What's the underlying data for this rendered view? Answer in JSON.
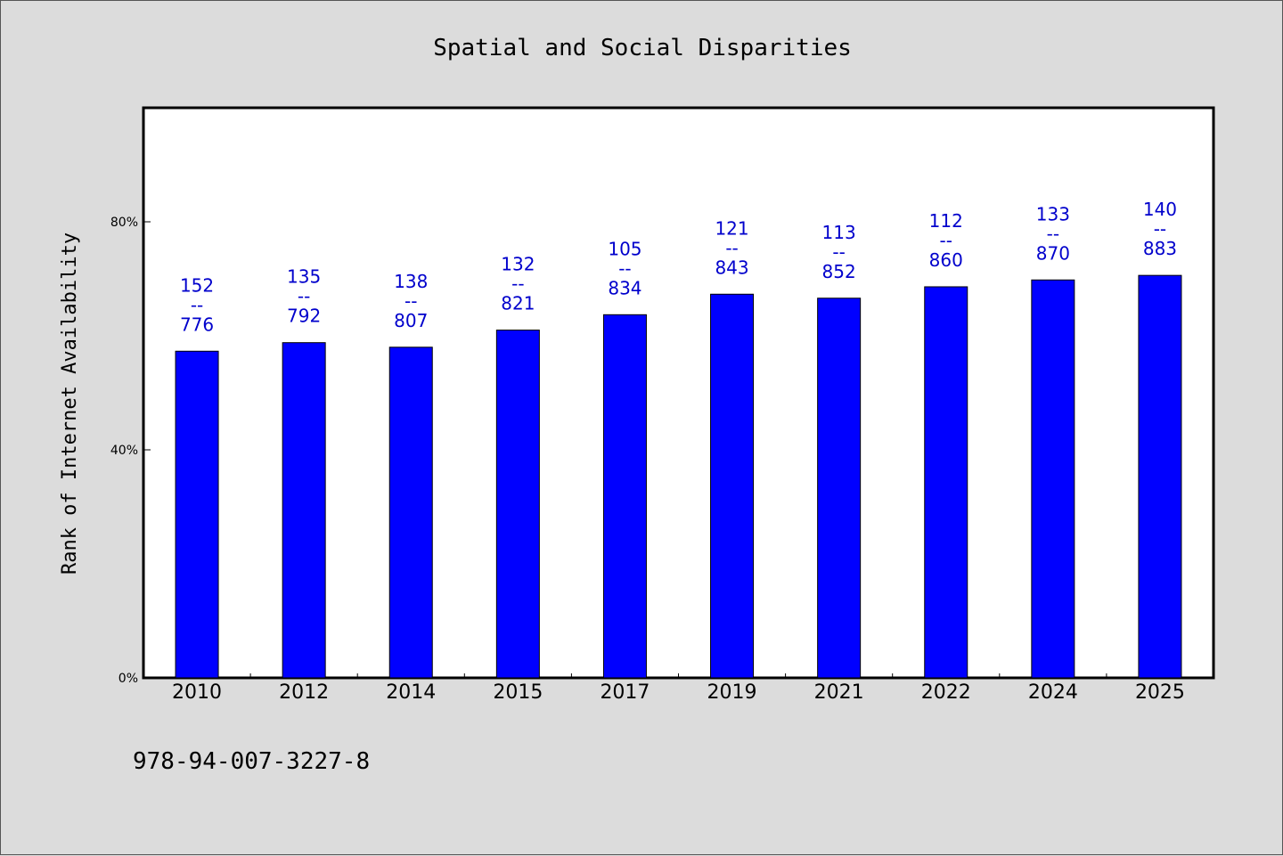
{
  "chart_data": {
    "type": "bar",
    "title": "Spatial and Social Disparities",
    "xlabel": "",
    "ylabel": "Rank of Internet Availability",
    "categories": [
      "2010",
      "2012",
      "2014",
      "2015",
      "2017",
      "2019",
      "2021",
      "2022",
      "2024",
      "2025"
    ],
    "values": [
      57.3,
      58.8,
      58.0,
      61.0,
      63.7,
      67.3,
      66.6,
      68.6,
      69.8,
      70.6
    ],
    "unit": "%",
    "data_labels": [
      [
        "152",
        "--",
        "776"
      ],
      [
        "135",
        "--",
        "792"
      ],
      [
        "138",
        "--",
        "807"
      ],
      [
        "132",
        "--",
        "821"
      ],
      [
        "105",
        "--",
        "834"
      ],
      [
        "121",
        "--",
        "843"
      ],
      [
        "113",
        "--",
        "852"
      ],
      [
        "112",
        "--",
        "860"
      ],
      [
        "133",
        "--",
        "870"
      ],
      [
        "140",
        "--",
        "883"
      ]
    ],
    "yticks": [
      "0%",
      "40%",
      "80%"
    ],
    "ytick_values": [
      0,
      40,
      80
    ],
    "ylim": [
      0,
      100
    ],
    "grid": false,
    "legend": "none",
    "bar_color": "#0000ff",
    "label_color": "#0000cc",
    "plot_background": "#ffffff",
    "page_background": "#dcdcdc"
  },
  "footer": {
    "isbn": "978-94-007-3227-8"
  }
}
